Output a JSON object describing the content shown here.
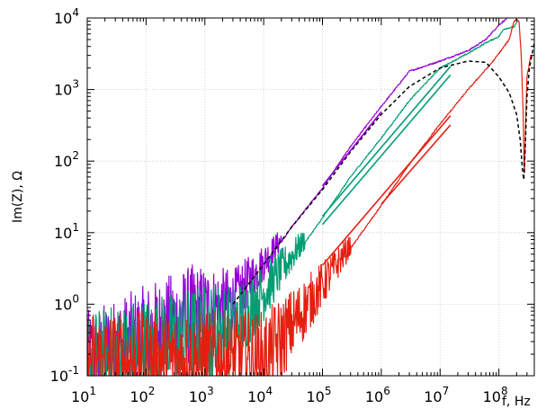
{
  "chart_data": {
    "type": "line",
    "title": "",
    "xlabel": "f, Hz",
    "ylabel": "Im(Z), Ω",
    "x_scale": "log",
    "y_scale": "log",
    "xlim": [
      10,
      400000000
    ],
    "ylim": [
      0.1,
      10000
    ],
    "grid": true,
    "legend": "none",
    "x_ticks": [
      {
        "base": "10",
        "exp": "1",
        "value": 10
      },
      {
        "base": "10",
        "exp": "2",
        "value": 100
      },
      {
        "base": "10",
        "exp": "3",
        "value": 1000
      },
      {
        "base": "10",
        "exp": "4",
        "value": 10000
      },
      {
        "base": "10",
        "exp": "5",
        "value": 100000
      },
      {
        "base": "10",
        "exp": "6",
        "value": 1000000
      },
      {
        "base": "10",
        "exp": "7",
        "value": 10000000
      },
      {
        "base": "10",
        "exp": "8",
        "value": 100000000
      }
    ],
    "y_ticks": [
      {
        "base": "10",
        "exp": "-1",
        "value": 0.1
      },
      {
        "base": "10",
        "exp": "0",
        "value": 1
      },
      {
        "base": "10",
        "exp": "1",
        "value": 10
      },
      {
        "base": "10",
        "exp": "2",
        "value": 100
      },
      {
        "base": "10",
        "exp": "3",
        "value": 1000
      },
      {
        "base": "10",
        "exp": "4",
        "value": 10000
      }
    ],
    "series": [
      {
        "color": "#9400d3",
        "style": "noisy",
        "noise_below": 20000,
        "x": [
          10,
          3000,
          10000,
          30000,
          100000,
          300000,
          1000000,
          3000000,
          10000000,
          30000000,
          60000000,
          100000000,
          140000000
        ],
        "y": [
          0.1,
          0.8,
          3.2,
          12,
          42,
          160,
          580,
          1800,
          2500,
          3500,
          5000,
          8000,
          10000
        ]
      },
      {
        "color": "#009e73",
        "style": "noisy",
        "noise_below": 50000,
        "x": [
          10,
          3000,
          10000,
          30000,
          100000,
          300000,
          1000000,
          3000000,
          10000000,
          30000000,
          60000000,
          100000000,
          120000000,
          180000000,
          210000000
        ],
        "y": [
          0.1,
          0.3,
          1.1,
          4,
          16,
          60,
          210,
          700,
          2000,
          3200,
          4500,
          5500,
          7000,
          7500,
          9000
        ]
      },
      {
        "color": "#e51e10",
        "style": "noisy",
        "noise_below": 300000,
        "x": [
          10,
          10000,
          30000,
          100000,
          300000,
          1000000,
          3000000,
          10000000,
          30000000,
          80000000,
          150000000,
          180000000,
          200000000,
          220000000,
          240000000,
          260000000,
          270000000,
          280000000,
          300000000,
          350000000
        ],
        "y": [
          0.1,
          0.1,
          0.35,
          1.5,
          6,
          24,
          90,
          330,
          1000,
          2500,
          5000,
          9000,
          9500,
          9000,
          3000,
          400,
          50,
          200,
          1500,
          3000
        ]
      },
      {
        "color": "#000000",
        "style": "dashed",
        "x": [
          3000,
          10000,
          30000,
          100000,
          300000,
          1000000,
          3000000,
          10000000,
          30000000,
          60000000,
          100000000,
          150000000,
          200000000,
          230000000,
          250000000,
          265000000,
          280000000,
          300000000,
          330000000,
          400000000
        ],
        "y": [
          1.0,
          3.6,
          12,
          40,
          135,
          450,
          1100,
          2000,
          2500,
          2400,
          1500,
          900,
          450,
          200,
          80,
          55,
          150,
          800,
          2000,
          4500
        ]
      },
      {
        "color": "#9400d3",
        "style": "fit",
        "x": [
          100000,
          1000000
        ],
        "y": [
          45,
          490
        ]
      },
      {
        "color": "#009e73",
        "style": "fit",
        "x": [
          100000,
          15000000
        ],
        "y": [
          17,
          2100
        ]
      },
      {
        "color": "#009e73",
        "style": "fit",
        "x": [
          100000,
          15000000
        ],
        "y": [
          13,
          1600
        ]
      },
      {
        "color": "#e51e10",
        "style": "fit",
        "x": [
          100000,
          15000000
        ],
        "y": [
          3.5,
          430
        ]
      },
      {
        "color": "#e51e10",
        "style": "fit",
        "x": [
          1000000,
          15000000
        ],
        "y": [
          25,
          320
        ]
      }
    ]
  }
}
